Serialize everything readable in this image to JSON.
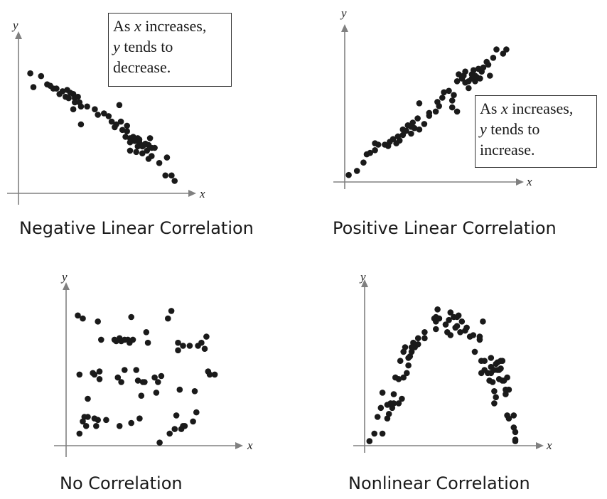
{
  "chart_data": [
    {
      "type": "scatter",
      "title": "",
      "caption": "Negative Linear Correlation",
      "xlabel": "x",
      "ylabel": "y",
      "xlim": [
        0,
        100
      ],
      "ylim": [
        0,
        100
      ],
      "grid": false,
      "annotation": {
        "lines": [
          "As x increases,",
          "y tends to",
          "decrease."
        ],
        "position": "top-right"
      },
      "points": [
        [
          4,
          87
        ],
        [
          6,
          77
        ],
        [
          11,
          85
        ],
        [
          15,
          79
        ],
        [
          17,
          78
        ],
        [
          19,
          76
        ],
        [
          21,
          76
        ],
        [
          23,
          72
        ],
        [
          25,
          74
        ],
        [
          27,
          70
        ],
        [
          28,
          75
        ],
        [
          30,
          73
        ],
        [
          29,
          69
        ],
        [
          32,
          72
        ],
        [
          33,
          69
        ],
        [
          35,
          70
        ],
        [
          33,
          66
        ],
        [
          36,
          66
        ],
        [
          32,
          61
        ],
        [
          37,
          63
        ],
        [
          41,
          63
        ],
        [
          37,
          50
        ],
        [
          46,
          61
        ],
        [
          48,
          57
        ],
        [
          52,
          58
        ],
        [
          55,
          56
        ],
        [
          57,
          52
        ],
        [
          60,
          50
        ],
        [
          62,
          64
        ],
        [
          63,
          52
        ],
        [
          59,
          48
        ],
        [
          64,
          46
        ],
        [
          67,
          45
        ],
        [
          67,
          49
        ],
        [
          66,
          41
        ],
        [
          69,
          40
        ],
        [
          71,
          41
        ],
        [
          74,
          40
        ],
        [
          75,
          39
        ],
        [
          75,
          37
        ],
        [
          72,
          38
        ],
        [
          69,
          37
        ],
        [
          74,
          34
        ],
        [
          77,
          34
        ],
        [
          78,
          35
        ],
        [
          79,
          36
        ],
        [
          81,
          35
        ],
        [
          83,
          33
        ],
        [
          82,
          40
        ],
        [
          85,
          33
        ],
        [
          80,
          31
        ],
        [
          77,
          29
        ],
        [
          73,
          30
        ],
        [
          69,
          31
        ],
        [
          83,
          27
        ],
        [
          81,
          25
        ],
        [
          88,
          22
        ],
        [
          93,
          26
        ],
        [
          92,
          13
        ],
        [
          96,
          13
        ],
        [
          98,
          9
        ]
      ]
    },
    {
      "type": "scatter",
      "title": "",
      "caption": "Positive Linear Correlation",
      "xlabel": "x",
      "ylabel": "y",
      "xlim": [
        0,
        100
      ],
      "ylim": [
        0,
        100
      ],
      "grid": false,
      "annotation": {
        "lines": [
          "As x increases,",
          "y tends to",
          "increase."
        ],
        "position": "bottom-right"
      },
      "points": [
        [
          2,
          3
        ],
        [
          7,
          6
        ],
        [
          11,
          12
        ],
        [
          13,
          18
        ],
        [
          15,
          19
        ],
        [
          18,
          21
        ],
        [
          18,
          26
        ],
        [
          20,
          25
        ],
        [
          24,
          25
        ],
        [
          26,
          24
        ],
        [
          27,
          27
        ],
        [
          29,
          29
        ],
        [
          31,
          26
        ],
        [
          32,
          31
        ],
        [
          33,
          28
        ],
        [
          35,
          32
        ],
        [
          35,
          36
        ],
        [
          37,
          35
        ],
        [
          38,
          39
        ],
        [
          40,
          38
        ],
        [
          40,
          33
        ],
        [
          41,
          41
        ],
        [
          42,
          37
        ],
        [
          45,
          36
        ],
        [
          44,
          44
        ],
        [
          45,
          55
        ],
        [
          48,
          40
        ],
        [
          51,
          46
        ],
        [
          51,
          48
        ],
        [
          55,
          49
        ],
        [
          56,
          56
        ],
        [
          57,
          53
        ],
        [
          59,
          59
        ],
        [
          60,
          63
        ],
        [
          63,
          64
        ],
        [
          65,
          57
        ],
        [
          65,
          52
        ],
        [
          66,
          61
        ],
        [
          68,
          49
        ],
        [
          68,
          71
        ],
        [
          69,
          76
        ],
        [
          71,
          73
        ],
        [
          72,
          75
        ],
        [
          73,
          78
        ],
        [
          73,
          70
        ],
        [
          75,
          71
        ],
        [
          75,
          66
        ],
        [
          77,
          73
        ],
        [
          77,
          76
        ],
        [
          78,
          79
        ],
        [
          79,
          71
        ],
        [
          79,
          75
        ],
        [
          80,
          74
        ],
        [
          81,
          80
        ],
        [
          82,
          73
        ],
        [
          83,
          78
        ],
        [
          84,
          81
        ],
        [
          86,
          85
        ],
        [
          88,
          75
        ],
        [
          87,
          83
        ],
        [
          90,
          88
        ],
        [
          92,
          94
        ],
        [
          96,
          91
        ],
        [
          98,
          94
        ]
      ]
    },
    {
      "type": "scatter",
      "title": "",
      "caption": "No Correlation",
      "xlabel": "x",
      "ylabel": "y",
      "xlim": [
        0,
        100
      ],
      "ylim": [
        0,
        100
      ],
      "grid": false,
      "points": [
        [
          7,
          86
        ],
        [
          8,
          8
        ],
        [
          8,
          47
        ],
        [
          10,
          16
        ],
        [
          10,
          84
        ],
        [
          11,
          19
        ],
        [
          12,
          13
        ],
        [
          13,
          31
        ],
        [
          13,
          19
        ],
        [
          16,
          48
        ],
        [
          17,
          18
        ],
        [
          17,
          47
        ],
        [
          18,
          13
        ],
        [
          19,
          82
        ],
        [
          19,
          17
        ],
        [
          20,
          44
        ],
        [
          20,
          49
        ],
        [
          21,
          70
        ],
        [
          24,
          17
        ],
        [
          29,
          70
        ],
        [
          30,
          69
        ],
        [
          31,
          45
        ],
        [
          32,
          13
        ],
        [
          32,
          71
        ],
        [
          33,
          69
        ],
        [
          33,
          42
        ],
        [
          35,
          70
        ],
        [
          35,
          50
        ],
        [
          37,
          70
        ],
        [
          38,
          68
        ],
        [
          39,
          85
        ],
        [
          39,
          15
        ],
        [
          40,
          70
        ],
        [
          42,
          50
        ],
        [
          43,
          43
        ],
        [
          44,
          18
        ],
        [
          45,
          33
        ],
        [
          46,
          42
        ],
        [
          47,
          42
        ],
        [
          48,
          75
        ],
        [
          49,
          68
        ],
        [
          53,
          45
        ],
        [
          54,
          35
        ],
        [
          55,
          42
        ],
        [
          56,
          2
        ],
        [
          57,
          46
        ],
        [
          61,
          84
        ],
        [
          62,
          8
        ],
        [
          63,
          89
        ],
        [
          65,
          11
        ],
        [
          66,
          20
        ],
        [
          67,
          68
        ],
        [
          67,
          63
        ],
        [
          68,
          37
        ],
        [
          69,
          11
        ],
        [
          70,
          13
        ],
        [
          70,
          66
        ],
        [
          71,
          13
        ],
        [
          74,
          66
        ],
        [
          76,
          16
        ],
        [
          77,
          36
        ],
        [
          78,
          22
        ],
        [
          79,
          66
        ],
        [
          81,
          68
        ],
        [
          83,
          64
        ],
        [
          84,
          72
        ],
        [
          85,
          49
        ],
        [
          86,
          47
        ],
        [
          89,
          47
        ]
      ]
    },
    {
      "type": "scatter",
      "title": "",
      "caption": "Nonlinear Correlation",
      "xlabel": "x",
      "ylabel": "y",
      "xlim": [
        0,
        100
      ],
      "ylim": [
        0,
        100
      ],
      "grid": false,
      "points": [
        [
          3,
          3
        ],
        [
          6,
          8
        ],
        [
          8,
          19
        ],
        [
          10,
          25
        ],
        [
          11,
          35
        ],
        [
          11,
          8
        ],
        [
          14,
          18
        ],
        [
          14,
          27
        ],
        [
          15,
          21
        ],
        [
          16,
          28
        ],
        [
          17,
          27
        ],
        [
          17,
          25
        ],
        [
          18,
          34
        ],
        [
          18,
          28
        ],
        [
          19,
          45
        ],
        [
          21,
          44
        ],
        [
          21,
          28
        ],
        [
          22,
          56
        ],
        [
          23,
          31
        ],
        [
          24,
          45
        ],
        [
          24,
          62
        ],
        [
          25,
          65
        ],
        [
          26,
          48
        ],
        [
          27,
          53
        ],
        [
          27,
          58
        ],
        [
          28,
          59
        ],
        [
          29,
          65
        ],
        [
          29,
          62
        ],
        [
          30,
          65
        ],
        [
          30,
          68
        ],
        [
          31,
          65
        ],
        [
          31,
          66
        ],
        [
          33,
          67
        ],
        [
          33,
          71
        ],
        [
          37,
          71
        ],
        [
          37,
          75
        ],
        [
          43,
          84
        ],
        [
          44,
          77
        ],
        [
          44,
          82
        ],
        [
          44,
          85
        ],
        [
          45,
          90
        ],
        [
          46,
          84
        ],
        [
          50,
          80
        ],
        [
          51,
          75
        ],
        [
          52,
          83
        ],
        [
          53,
          88
        ],
        [
          53,
          73
        ],
        [
          55,
          85
        ],
        [
          56,
          78
        ],
        [
          57,
          85
        ],
        [
          57,
          79
        ],
        [
          58,
          86
        ],
        [
          59,
          75
        ],
        [
          60,
          82
        ],
        [
          62,
          76
        ],
        [
          63,
          78
        ],
        [
          65,
          72
        ],
        [
          67,
          73
        ],
        [
          68,
          62
        ],
        [
          71,
          70
        ],
        [
          71,
          72
        ],
        [
          72,
          56
        ],
        [
          72,
          48
        ],
        [
          73,
          82
        ],
        [
          74,
          50
        ],
        [
          74,
          56
        ],
        [
          76,
          48
        ],
        [
          77,
          43
        ],
        [
          78,
          52
        ],
        [
          78,
          48
        ],
        [
          78,
          58
        ],
        [
          79,
          42
        ],
        [
          80,
          50
        ],
        [
          80,
          36
        ],
        [
          80,
          28
        ],
        [
          81,
          54
        ],
        [
          81,
          32
        ],
        [
          82,
          50
        ],
        [
          82,
          55
        ],
        [
          83,
          50
        ],
        [
          83,
          44
        ],
        [
          84,
          56
        ],
        [
          84,
          51
        ],
        [
          85,
          56
        ],
        [
          85,
          43
        ],
        [
          86,
          43
        ],
        [
          87,
          37
        ],
        [
          87,
          34
        ],
        [
          88,
          45
        ],
        [
          88,
          20
        ],
        [
          89,
          37
        ],
        [
          89,
          18
        ],
        [
          92,
          20
        ],
        [
          92,
          12
        ],
        [
          93,
          9
        ],
        [
          93,
          4
        ],
        [
          93,
          3
        ]
      ]
    }
  ]
}
